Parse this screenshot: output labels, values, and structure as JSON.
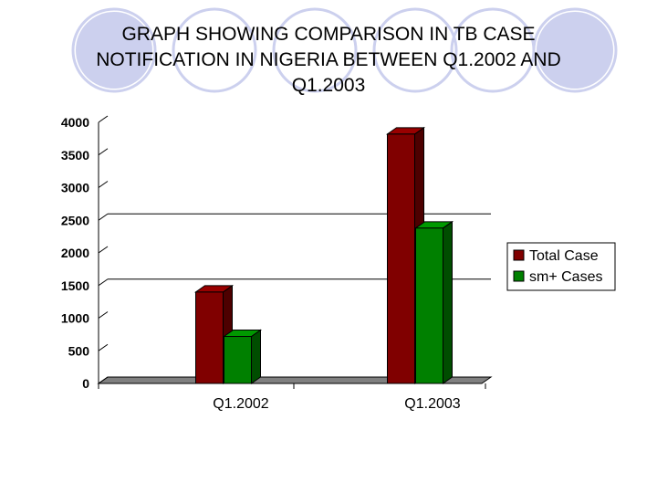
{
  "title_lines": [
    "GRAPH SHOWING COMPARISON IN TB CASE",
    "NOTIFICATION IN NIGERIA BETWEEN Q1.2002 AND",
    "Q1.2003"
  ],
  "colors": {
    "background_circles": "#ccd0ee",
    "grid": "#000000"
  },
  "chart_data": {
    "type": "bar",
    "title": "GRAPH SHOWING COMPARISON IN TB CASE NOTIFICATION IN NIGERIA BETWEEN Q1.2002 AND Q1.2003",
    "categories": [
      "Q1.2002",
      "Q1.2003"
    ],
    "series": [
      {
        "name": "Total Case",
        "values": [
          1400,
          3820
        ],
        "color": "#800000",
        "side_color": "#4d0000",
        "top_color": "#990000"
      },
      {
        "name": "sm+ Cases",
        "values": [
          720,
          2380
        ],
        "color": "#008000",
        "side_color": "#004d00",
        "top_color": "#009900"
      }
    ],
    "ylim": [
      0,
      4000
    ],
    "yticks": [
      "0",
      "500",
      "1000",
      "1500",
      "2000",
      "2500",
      "3000",
      "3500",
      "4000"
    ],
    "xlabel": "",
    "ylabel": "",
    "grid": "partial",
    "three_d": true,
    "legend_position": "right"
  }
}
